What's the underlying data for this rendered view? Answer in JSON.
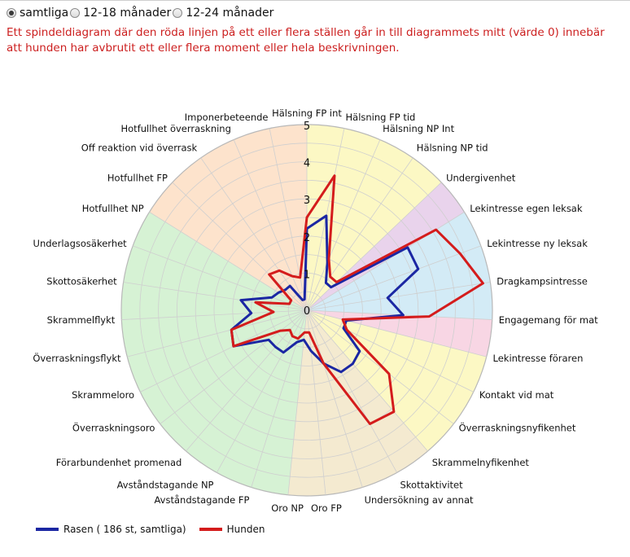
{
  "radios": [
    {
      "label": "samtliga",
      "checked": true
    },
    {
      "label": "12-18 månader",
      "checked": false
    },
    {
      "label": "12-24 månader",
      "checked": false
    }
  ],
  "notice": "Ett spindeldiagram där den röda linjen på ett eller flera ställen går in till diagrammets mitt (värde 0) innebär att hunden har avbrutit ett eller flera moment eller hela beskrivningen.",
  "chart_data": {
    "type": "radar",
    "title": "",
    "rlim": [
      0,
      5
    ],
    "ticks": [
      "0",
      "1",
      "2",
      "3",
      "4",
      "5"
    ],
    "grid": true,
    "categories": [
      "Hälsning FP int",
      "Hälsning FP tid",
      "Hälsning NP Int",
      "Hälsning NP tid",
      "Undergivenhet",
      "Lekintresse egen leksak",
      "Lekintresse ny leksak",
      "Dragkampsintresse",
      "Engagemang för mat",
      "Lekintresse föraren",
      "Kontakt vid mat",
      "Överraskningsnyfikenhet",
      "Skrammelnyfikenhet",
      "Skottaktivitet",
      "Undersökning av annat",
      "Oro FP",
      "Oro NP",
      "Avståndstagande FP",
      "Avståndstagande NP",
      "Förarbundenhet promenad",
      "Överraskningsoro",
      "Skrammeloro",
      "Överraskningsflykt",
      "Skrammelflykt",
      "Skottosäkerhet",
      "Underlagsosäkerhet",
      "Hotfullhet NP",
      "Hotfullhet FP",
      "Off reaktion vid överrask",
      "Hotfullhet överraskning",
      "Imponerbeteende"
    ],
    "sectors": [
      {
        "from": 0,
        "to": 4,
        "color": "#fcf8c4"
      },
      {
        "from": 4,
        "to": 5,
        "color": "#e9d3ec"
      },
      {
        "from": 5,
        "to": 8,
        "color": "#d3ebf6"
      },
      {
        "from": 8,
        "to": 9,
        "color": "#f8d6e4"
      },
      {
        "from": 9,
        "to": 12,
        "color": "#fcf8c4"
      },
      {
        "from": 12,
        "to": 16,
        "color": "#f4ead0"
      },
      {
        "from": 16,
        "to": 26,
        "color": "#d6f2d4"
      },
      {
        "from": 26,
        "to": 31,
        "color": "#fde3cc"
      }
    ],
    "series": [
      {
        "name": "Rasen ( 186 st, samtliga)",
        "color": "#1b27a3",
        "values": [
          2.2,
          2.6,
          1.4,
          0.9,
          0.9,
          3.2,
          3.2,
          2.2,
          2.6,
          1.1,
          1.1,
          1.8,
          1.9,
          1.9,
          1.5,
          1.1,
          0.8,
          0.9,
          1.3,
          1.3,
          1.3,
          2.2,
          2.1,
          1.5,
          1.8,
          1.0,
          0.9,
          0.8,
          0.8,
          0.3,
          0.3
        ]
      },
      {
        "name": "Hunden",
        "color": "#d41c1c",
        "values": [
          2.5,
          3.7,
          1.5,
          1.1,
          1.1,
          4.1,
          4.4,
          4.8,
          3.3,
          1.0,
          1.2,
          2.8,
          3.6,
          3.5,
          1.5,
          0.6,
          0.6,
          0.8,
          0.8,
          0.7,
          0.9,
          2.2,
          2.1,
          0.9,
          1.4,
          0.5,
          0.5,
          1.4,
          1.3,
          1.0,
          0.9
        ]
      }
    ]
  },
  "legend": [
    {
      "label": "Rasen ( 186 st, samtliga)",
      "color": "#1b27a3"
    },
    {
      "label": "Hunden",
      "color": "#d41c1c"
    }
  ]
}
